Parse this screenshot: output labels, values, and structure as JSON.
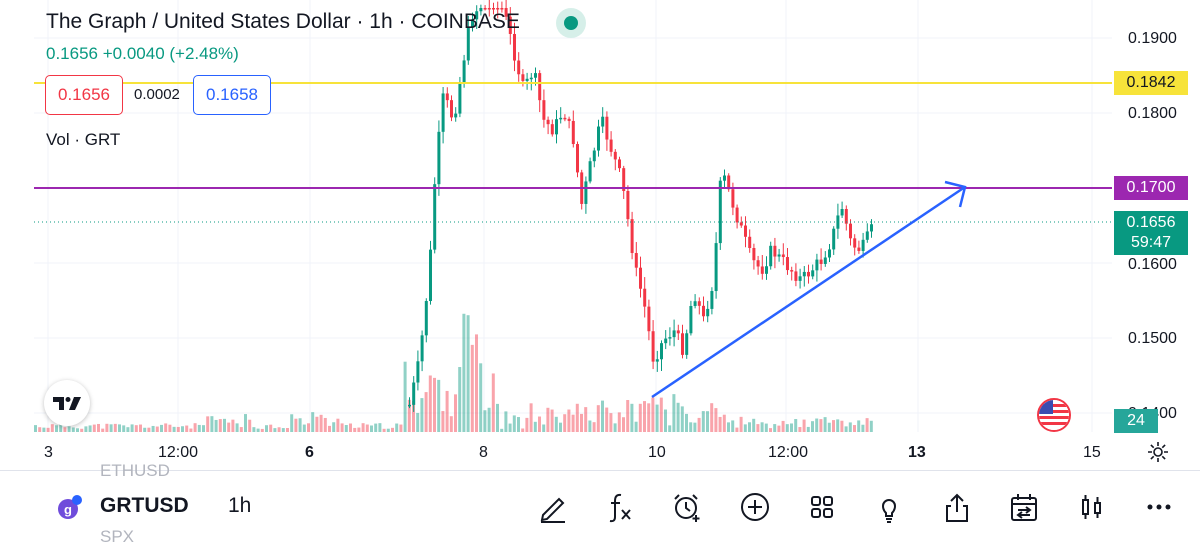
{
  "header": {
    "title": "The Graph / United States Dollar · 1h · COINBASE",
    "change": "0.1656  +0.0040 (+2.48%)",
    "sell_price": "0.1656",
    "spread": "0.0002",
    "buy_price": "0.1658",
    "volume_label": "Vol · GRT"
  },
  "price_axis": {
    "ticks": [
      "0.1900",
      "0.1800",
      "0.1600",
      "0.1500",
      "0.1400"
    ],
    "yellow_tag": "0.1842",
    "purple_tag": "0.1700",
    "current_price": "0.1656",
    "countdown": "59:47",
    "volume_tag": "24"
  },
  "time_axis": [
    "3",
    "12:00",
    "6",
    "8",
    "10",
    "12:00",
    "13",
    "15"
  ],
  "bottom": {
    "ghost_above": "ETHUSD",
    "ghost_below": "SPX",
    "symbol": "GRTUSD",
    "timeframe": "1h"
  },
  "colors": {
    "up": "#089981",
    "down": "#f23645",
    "yellow_line": "#f7e33a",
    "purple_line": "#9c27b0",
    "trend_line": "#2962ff"
  },
  "icons": [
    "tradingview-logo-icon",
    "us-flag-icon",
    "settings-gear-icon",
    "symbol-icon",
    "draw-pen-icon",
    "fx-indicators-icon",
    "alert-clock-icon",
    "add-icon",
    "layout-grid-icon",
    "ideas-lightbulb-icon",
    "share-icon",
    "calendar-replay-icon",
    "candles-icon",
    "more-icon"
  ]
}
